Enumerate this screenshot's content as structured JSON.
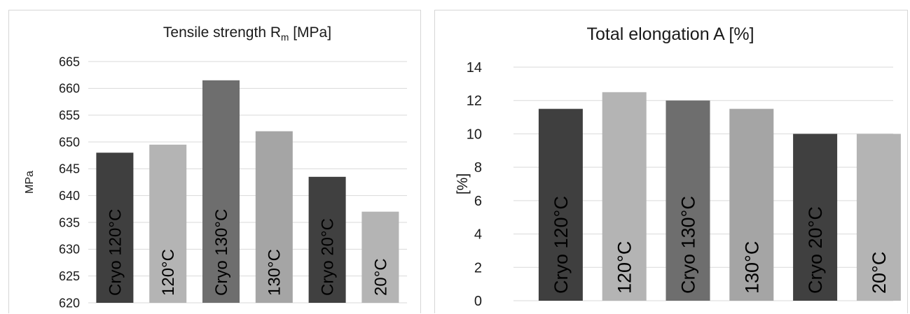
{
  "chart_data": [
    {
      "type": "bar",
      "title": "Tensile strength R",
      "title_subscript": "m",
      "title_suffix": " [MPa]",
      "xlabel": "",
      "ylabel": "MPa",
      "ylim": [
        620,
        665
      ],
      "yticks": [
        620,
        625,
        630,
        635,
        640,
        645,
        650,
        655,
        660,
        665
      ],
      "grid": true,
      "legend": "none",
      "categories": [
        "Cryo 120°C",
        "120°C",
        "Cryo 130°C",
        "130°C",
        "Cryo 20°C",
        "20°C"
      ],
      "values": [
        648,
        649.5,
        661.5,
        652,
        643.5,
        637
      ],
      "colors": [
        "#3f3f3f",
        "#b4b4b4",
        "#6e6e6e",
        "#a5a5a5",
        "#404040",
        "#b4b4b4"
      ]
    },
    {
      "type": "bar",
      "title": "Total elongation A [%]",
      "xlabel": "",
      "ylabel": "[%]",
      "ylim": [
        0,
        14
      ],
      "yticks": [
        0,
        2,
        4,
        6,
        8,
        10,
        12,
        14
      ],
      "grid": true,
      "legend": "none",
      "categories": [
        "Cryo 120°C",
        "120°C",
        "Cryo 130°C",
        "130°C",
        "Cryo 20°C",
        "20°C"
      ],
      "values": [
        11.5,
        12.5,
        12,
        11.5,
        10,
        10
      ],
      "colors": [
        "#3f3f3f",
        "#b4b4b4",
        "#6e6e6e",
        "#a5a5a5",
        "#404040",
        "#b4b4b4"
      ]
    }
  ]
}
